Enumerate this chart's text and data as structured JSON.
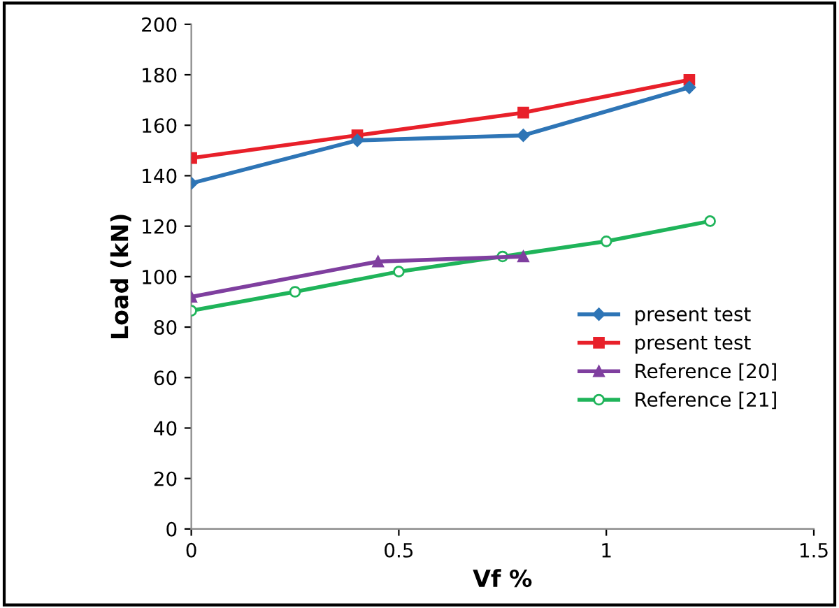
{
  "chart_data": {
    "type": "line",
    "xlabel": "Vf %",
    "ylabel": "Load (kN)",
    "xlim": [
      0,
      1.5
    ],
    "xticks": [
      0,
      {
        "value": 0.5,
        "label": "0.5"
      },
      1,
      {
        "value": 1.5,
        "label": "1.5"
      }
    ],
    "ylim": [
      0,
      200
    ],
    "yticks": [
      0,
      20,
      40,
      60,
      80,
      100,
      120,
      140,
      160,
      180,
      200
    ],
    "grid": false,
    "legend": "lower right",
    "series": [
      {
        "name": "present test",
        "color": "#2e75b6",
        "marker": "diamond",
        "x": [
          0,
          0.4,
          0.8,
          1.2
        ],
        "values": [
          137,
          154,
          156,
          175
        ]
      },
      {
        "name": "present test",
        "color": "#e8202a",
        "marker": "square",
        "x": [
          0,
          0.4,
          0.8,
          1.2
        ],
        "values": [
          147,
          156,
          165,
          178
        ]
      },
      {
        "name": "Reference [20]",
        "color": "#7f3f9f",
        "marker": "triangle",
        "x": [
          0,
          0.45,
          0.8
        ],
        "values": [
          92,
          106,
          108
        ]
      },
      {
        "name": "Reference [21]",
        "color": "#1fb45a",
        "marker": "circle",
        "x": [
          0,
          0.25,
          0.5,
          0.75,
          1,
          1.25
        ],
        "values": [
          86.5,
          94,
          102,
          108,
          114,
          122
        ]
      }
    ]
  }
}
